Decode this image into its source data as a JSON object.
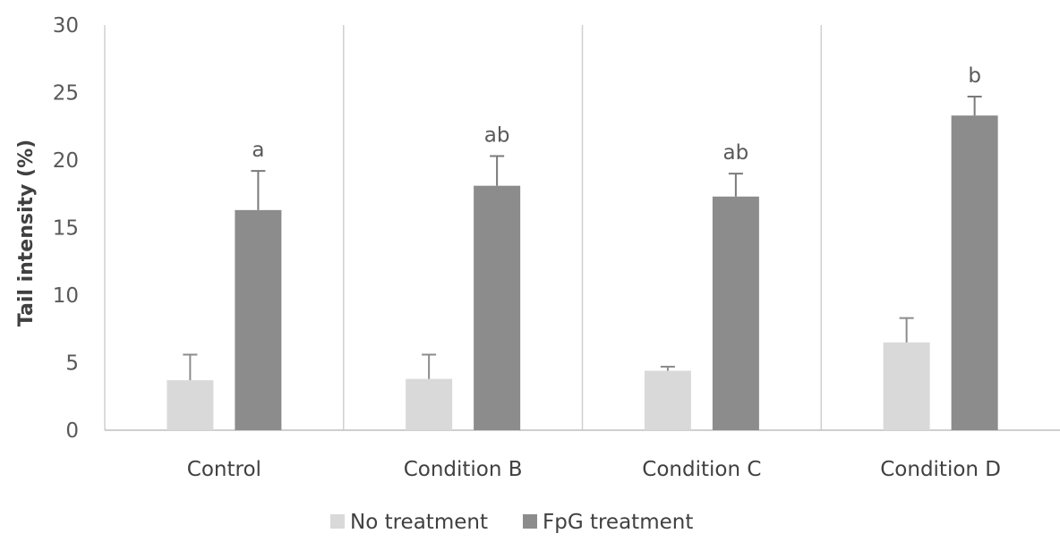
{
  "chart_data": {
    "type": "bar",
    "title": "",
    "xlabel": "",
    "ylabel": "Tail intensity (%)",
    "ylim": [
      0,
      30
    ],
    "yticks": [
      "0",
      "5",
      "10",
      "15",
      "20",
      "25",
      "30"
    ],
    "categories": [
      "Control",
      "Condition B",
      "Condition C",
      "Condition D"
    ],
    "series": [
      {
        "name": "No treatment",
        "color": "#d9d9d9",
        "values": [
          3.7,
          3.8,
          4.4,
          6.5
        ],
        "errors": [
          1.9,
          1.8,
          0.3,
          1.8
        ]
      },
      {
        "name": "FpG treatment",
        "color": "#8c8c8c",
        "values": [
          16.3,
          18.1,
          17.3,
          23.3
        ],
        "errors": [
          2.9,
          2.2,
          1.7,
          1.4
        ]
      }
    ],
    "annotations": [
      "a",
      "ab",
      "ab",
      "b"
    ],
    "grid": false,
    "category_separators": true,
    "legend_position": "bottom"
  }
}
